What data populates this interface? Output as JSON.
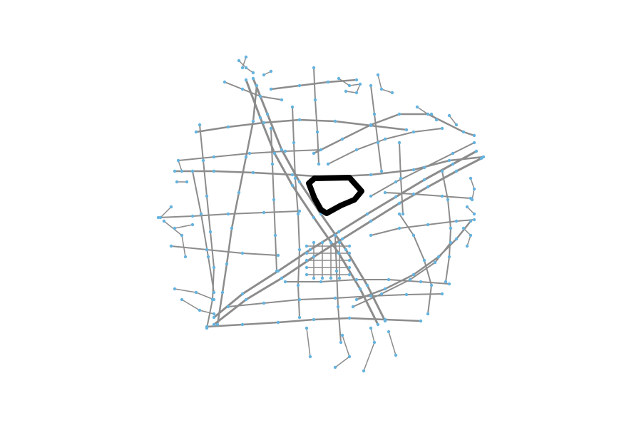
{
  "map": {
    "kind": "street-network-graph",
    "background": "#ffffff",
    "colors": {
      "edge": "#8c8c8c",
      "node": "#66b3de",
      "highlight_route": "#000000"
    },
    "layers": [
      "street-edges",
      "intersection-nodes",
      "highlighted-route"
    ],
    "legend": "none",
    "axes": "hidden"
  }
}
